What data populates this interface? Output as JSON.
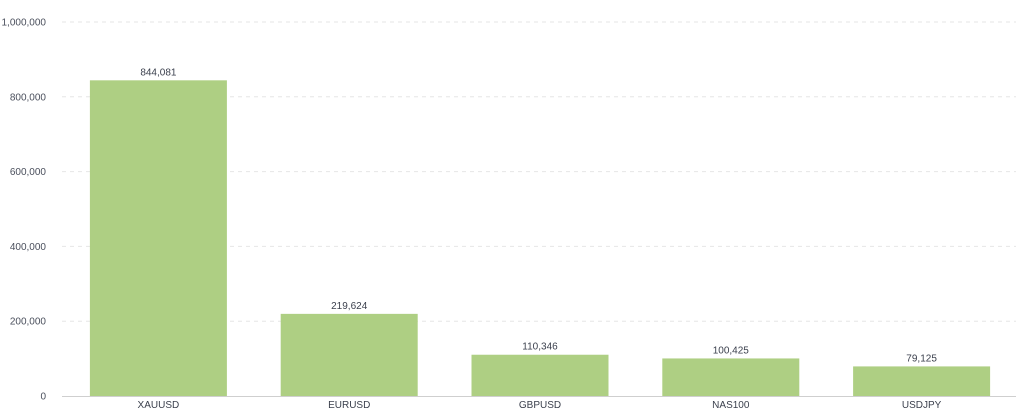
{
  "chart_data": {
    "type": "bar",
    "title": "",
    "xlabel": "",
    "ylabel": "",
    "categories": [
      "XAUUSD",
      "EURUSD",
      "GBPUSD",
      "NAS100",
      "USDJPY"
    ],
    "values": [
      844081,
      219624,
      110346,
      100425,
      79125
    ],
    "value_labels": [
      "844,081",
      "219,624",
      "110,346",
      "100,425",
      "79,125"
    ],
    "ylim": [
      0,
      1000000
    ],
    "yticks": [
      0,
      200000,
      400000,
      600000,
      800000,
      1000000
    ],
    "ytick_labels": [
      "0",
      "200,000",
      "400,000",
      "600,000",
      "800,000",
      "1,000,000"
    ],
    "grid": true,
    "legend": "none",
    "bar_color": "#aecf83"
  }
}
